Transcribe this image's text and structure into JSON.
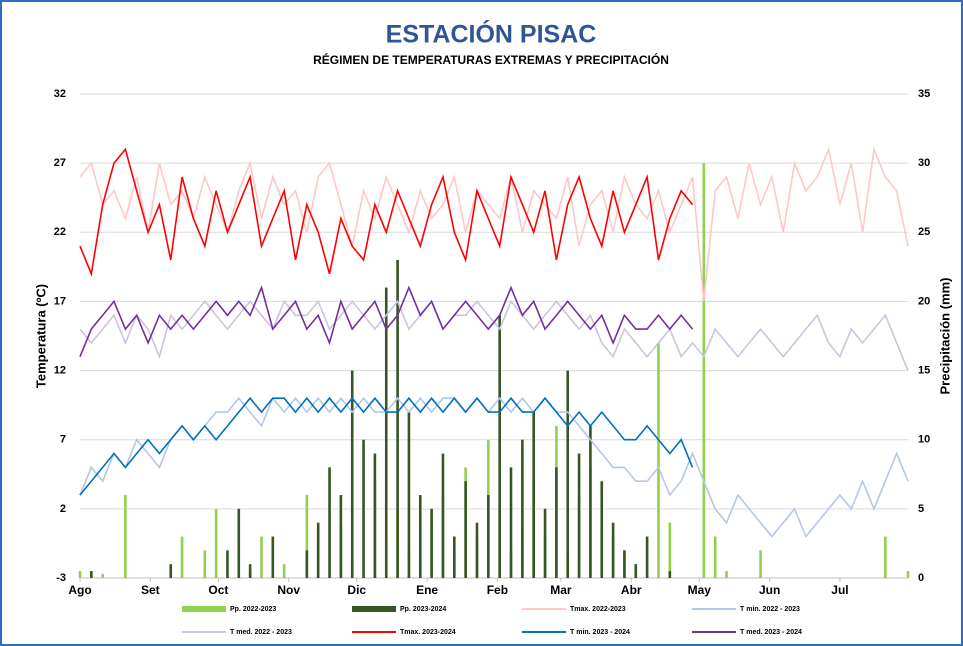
{
  "chart_data": {
    "type": "line",
    "title": "ESTACIÓN PISAC",
    "subtitle": "RÉGIMEN DE TEMPERATURAS EXTREMAS Y PRECIPITACIÓN",
    "y_label": "Temperatura (ºC)",
    "y2_label": "Precipitación (mm)",
    "xlim": [
      0,
      365
    ],
    "xticks": [
      {
        "value": 0,
        "label": "Ago"
      },
      {
        "value": 31,
        "label": "Set"
      },
      {
        "value": 61,
        "label": "Oct"
      },
      {
        "value": 92,
        "label": "Nov"
      },
      {
        "value": 122,
        "label": "Dic"
      },
      {
        "value": 153,
        "label": "Ene"
      },
      {
        "value": 184,
        "label": "Feb"
      },
      {
        "value": 212,
        "label": "Mar"
      },
      {
        "value": 243,
        "label": "Abr"
      },
      {
        "value": 273,
        "label": "May"
      },
      {
        "value": 304,
        "label": "Jun"
      },
      {
        "value": 335,
        "label": "Jul"
      }
    ],
    "ylim": [
      -3,
      32
    ],
    "yticks": [
      -3,
      2,
      7,
      12,
      17,
      22,
      27,
      32
    ],
    "y2lim": [
      0,
      35
    ],
    "y2ticks": [
      0,
      5,
      10,
      15,
      20,
      25,
      30,
      35
    ],
    "grid": true,
    "x": [
      0,
      5,
      10,
      15,
      20,
      25,
      30,
      35,
      40,
      45,
      50,
      55,
      60,
      65,
      70,
      75,
      80,
      85,
      90,
      95,
      100,
      105,
      110,
      115,
      120,
      125,
      130,
      135,
      140,
      145,
      150,
      155,
      160,
      165,
      170,
      175,
      180,
      185,
      190,
      195,
      200,
      205,
      210,
      215,
      220,
      225,
      230,
      235,
      240,
      245,
      250,
      255,
      260,
      265,
      270,
      275,
      280,
      285,
      290,
      295,
      300,
      305,
      310,
      315,
      320,
      325,
      330,
      335,
      340,
      345,
      350,
      355,
      360,
      365
    ],
    "series": [
      {
        "name": "Pp. 2022-2023",
        "type": "bar",
        "axis": "y2",
        "color": "#92d050",
        "values": [
          0.5,
          0,
          0.3,
          0,
          6,
          0,
          0,
          0,
          0,
          3,
          0,
          2,
          5,
          0,
          0,
          0.5,
          3,
          0,
          1,
          0,
          6,
          2,
          0,
          4,
          1,
          0,
          7,
          3,
          5,
          2,
          0,
          4,
          6,
          2,
          8,
          3,
          10,
          5,
          2,
          4,
          7,
          3,
          11,
          2,
          6,
          8,
          4,
          3,
          2,
          1,
          0,
          17,
          4,
          0,
          0,
          30,
          3,
          0.5,
          0,
          0,
          2,
          0,
          0,
          0,
          0,
          0,
          0,
          0,
          0,
          0,
          0,
          3,
          0,
          0.5
        ]
      },
      {
        "name": "Pp. 2023-2024",
        "type": "bar",
        "axis": "y2",
        "color": "#375623",
        "values": [
          0,
          0.5,
          0,
          0,
          0,
          0,
          0,
          0,
          1,
          0,
          0,
          0,
          0,
          2,
          5,
          1,
          0,
          3,
          0,
          0,
          2,
          4,
          8,
          6,
          15,
          10,
          9,
          21,
          23,
          12,
          6,
          5,
          9,
          3,
          7,
          4,
          6,
          19,
          8,
          10,
          12,
          5,
          8,
          15,
          9,
          11,
          7,
          4,
          2,
          1,
          3,
          0,
          0.5,
          0,
          0,
          null,
          null,
          null,
          null,
          null,
          null,
          null,
          null,
          null,
          null,
          null,
          null,
          null,
          null,
          null,
          null,
          null,
          null,
          null
        ]
      },
      {
        "name": "Tmax. 2022-2023",
        "type": "line",
        "color": "#ffc7c7",
        "values": [
          26,
          27,
          24,
          25,
          23,
          26,
          22,
          27,
          24,
          25,
          23,
          26,
          24,
          22,
          25,
          27,
          23,
          26,
          24,
          25,
          22,
          26,
          27,
          24,
          21,
          25,
          23,
          26,
          24,
          22,
          25,
          23,
          24,
          26,
          22,
          25,
          24,
          23,
          26,
          22,
          25,
          24,
          23,
          26,
          21,
          24,
          25,
          22,
          26,
          24,
          23,
          25,
          22,
          24,
          26,
          17,
          25,
          26,
          23,
          27,
          24,
          26,
          22,
          27,
          25,
          26,
          28,
          24,
          27,
          22,
          28,
          26,
          25,
          21
        ]
      },
      {
        "name": "T min. 2022 - 2023",
        "type": "line",
        "color": "#b4c7e7",
        "values": [
          3,
          5,
          4,
          6,
          5,
          7,
          6,
          5,
          7,
          8,
          7,
          8,
          9,
          9,
          10,
          9,
          8,
          10,
          9,
          10,
          9,
          10,
          9,
          10,
          9,
          10,
          9,
          9,
          10,
          9,
          10,
          9,
          10,
          10,
          9,
          10,
          9,
          10,
          9,
          10,
          9,
          10,
          9,
          9,
          8,
          7,
          6,
          5,
          5,
          4,
          4,
          5,
          3,
          4,
          6,
          4,
          2,
          1,
          3,
          2,
          1,
          0,
          1,
          2,
          0,
          1,
          2,
          3,
          2,
          4,
          2,
          4,
          6,
          4
        ]
      },
      {
        "name": "T med. 2022 - 2023",
        "type": "line",
        "color": "#cdc3e0",
        "values": [
          15,
          14,
          15,
          16,
          14,
          16,
          15,
          13,
          16,
          15,
          16,
          17,
          16,
          15,
          16,
          17,
          16,
          15,
          17,
          16,
          16,
          17,
          15,
          16,
          17,
          16,
          15,
          16,
          17,
          15,
          16,
          17,
          15,
          16,
          16,
          17,
          16,
          15,
          17,
          16,
          15,
          16,
          17,
          16,
          15,
          16,
          14,
          13,
          15,
          14,
          13,
          14,
          15,
          13,
          14,
          13,
          15,
          14,
          13,
          14,
          15,
          14,
          13,
          14,
          15,
          16,
          14,
          13,
          15,
          14,
          15,
          16,
          14,
          12
        ]
      },
      {
        "name": "Tmax. 2023-2024",
        "type": "line",
        "color": "#ff0000",
        "values": [
          21,
          19,
          24,
          27,
          28,
          25,
          22,
          24,
          20,
          26,
          23,
          21,
          25,
          22,
          24,
          26,
          21,
          23,
          25,
          20,
          24,
          22,
          19,
          23,
          21,
          20,
          24,
          22,
          25,
          23,
          21,
          24,
          26,
          22,
          20,
          25,
          23,
          21,
          26,
          24,
          22,
          25,
          20,
          24,
          26,
          23,
          21,
          25,
          22,
          24,
          26,
          20,
          23,
          25,
          24,
          null,
          null,
          null,
          null,
          null,
          null,
          null,
          null,
          null,
          null,
          null,
          null,
          null,
          null,
          null,
          null,
          null,
          null,
          null
        ]
      },
      {
        "name": "T min. 2023 - 2024",
        "type": "line",
        "color": "#0070c0",
        "values": [
          3,
          4,
          5,
          6,
          5,
          6,
          7,
          6,
          7,
          8,
          7,
          8,
          7,
          8,
          9,
          10,
          9,
          10,
          10,
          9,
          10,
          9,
          10,
          9,
          10,
          9,
          10,
          9,
          9,
          10,
          9,
          10,
          9,
          10,
          9,
          10,
          9,
          9,
          10,
          9,
          9,
          10,
          9,
          8,
          9,
          8,
          9,
          8,
          7,
          7,
          8,
          7,
          6,
          7,
          5,
          null,
          null,
          null,
          null,
          null,
          null,
          null,
          null,
          null,
          null,
          null,
          null,
          null,
          null,
          null,
          null,
          null,
          null,
          null
        ]
      },
      {
        "name": "T med. 2023 - 2024",
        "type": "line",
        "color": "#7030a0",
        "values": [
          13,
          15,
          16,
          17,
          15,
          16,
          14,
          16,
          15,
          16,
          15,
          16,
          17,
          16,
          17,
          16,
          18,
          15,
          16,
          17,
          15,
          16,
          14,
          17,
          15,
          16,
          17,
          15,
          16,
          18,
          16,
          17,
          15,
          16,
          17,
          16,
          15,
          16,
          18,
          16,
          17,
          15,
          16,
          17,
          16,
          15,
          16,
          14,
          16,
          15,
          15,
          16,
          15,
          16,
          15,
          null,
          null,
          null,
          null,
          null,
          null,
          null,
          null,
          null,
          null,
          null,
          null,
          null,
          null,
          null,
          null,
          null,
          null,
          null
        ]
      }
    ]
  }
}
